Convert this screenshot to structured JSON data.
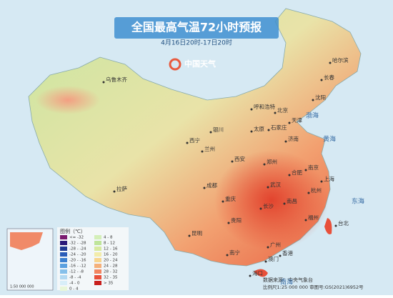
{
  "header": {
    "title": "全国最高气温72小时预报",
    "subtitle": "4月16日20时-17日20时",
    "logo": "中国天气"
  },
  "cities": [
    "乌鲁木齐",
    "哈尔滨",
    "长春",
    "沈阳",
    "呼和浩特",
    "北京",
    "天津",
    "石家庄",
    "太原",
    "济南",
    "银川",
    "西宁",
    "兰州",
    "郑州",
    "西安",
    "合肥",
    "南京",
    "上海",
    "武汉",
    "杭州",
    "成都",
    "重庆",
    "长沙",
    "南昌",
    "拉萨",
    "贵阳",
    "福州",
    "台北",
    "昆明",
    "南宁",
    "广州",
    "香港",
    "澳门",
    "海口"
  ],
  "seas": [
    "渤海",
    "黄海",
    "东海",
    "南海"
  ],
  "legend": {
    "title": "图例（℃）",
    "items": [
      {
        "label": "<= -32",
        "color": "#7a1a6e"
      },
      {
        "label": "-32 - -28",
        "color": "#2a1a7a"
      },
      {
        "label": "-28 - -24",
        "color": "#1f3a93"
      },
      {
        "label": "-24 - -20",
        "color": "#2a5cb8"
      },
      {
        "label": "-20 - -16",
        "color": "#3c80d0"
      },
      {
        "label": "-16 - -12",
        "color": "#5aa0e0"
      },
      {
        "label": "-12 - -8",
        "color": "#86c0ea"
      },
      {
        "label": "-8 - -4",
        "color": "#b2d9f2"
      },
      {
        "label": "-4 - 0",
        "color": "#d8eef8"
      },
      {
        "label": "0 - 4",
        "color": "#e8f6d8"
      },
      {
        "label": "4 - 8",
        "color": "#d4efb8"
      },
      {
        "label": "8 - 12",
        "color": "#bfe59a"
      },
      {
        "label": "12 - 16",
        "color": "#d8eaa0"
      },
      {
        "label": "16 - 20",
        "color": "#f3ecaa"
      },
      {
        "label": "20 - 24",
        "color": "#f7d58e"
      },
      {
        "label": "24 - 28",
        "color": "#f5b07a"
      },
      {
        "label": "28 - 32",
        "color": "#f28560"
      },
      {
        "label": "32 - 35",
        "color": "#e8503a"
      },
      {
        "label": "> 35",
        "color": "#c8201e"
      }
    ]
  },
  "source": {
    "line1": "数据来源：中央气象台",
    "line2": "比例尺1:25 000 000  审图号:GS(2021)6952号",
    "inset_scale": "1:50 000 000"
  }
}
